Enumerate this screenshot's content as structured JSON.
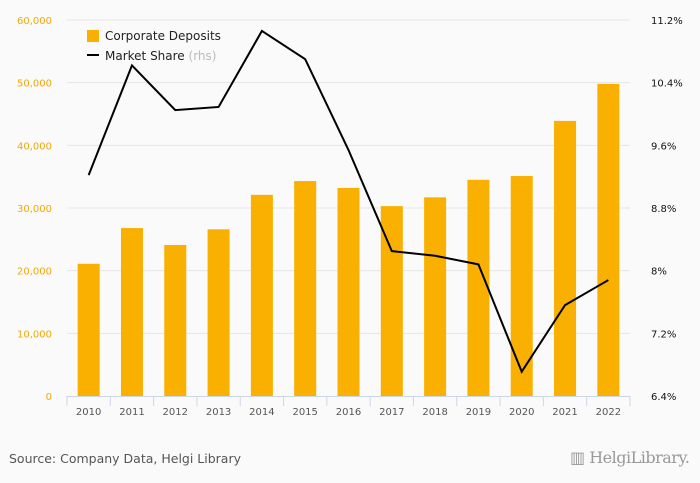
{
  "chart_data": {
    "type": "bar",
    "categories": [
      "2010",
      "2011",
      "2012",
      "2013",
      "2014",
      "2015",
      "2016",
      "2017",
      "2018",
      "2019",
      "2020",
      "2021",
      "2022"
    ],
    "series": [
      {
        "name": "Corporate Deposits",
        "axis": "left",
        "type": "bar",
        "color": "#f9b000",
        "values": [
          21100,
          26800,
          24100,
          26600,
          32100,
          34300,
          33200,
          30300,
          31700,
          34500,
          35100,
          43900,
          49800
        ]
      },
      {
        "name": "Market Share",
        "suffix": "(rhs)",
        "axis": "right",
        "type": "line",
        "color": "#000000",
        "values": [
          9.22,
          10.62,
          10.05,
          10.09,
          11.06,
          10.7,
          9.54,
          8.25,
          8.19,
          8.08,
          6.71,
          7.56,
          7.88
        ]
      }
    ],
    "left_axis": {
      "ylim": [
        0,
        60000
      ],
      "ticks": [
        "0",
        "10,000",
        "20,000",
        "30,000",
        "40,000",
        "50,000",
        "60,000"
      ]
    },
    "right_axis": {
      "ylim": [
        6.4,
        11.2
      ],
      "ticks": [
        "6.4%",
        "7.2%",
        "8%",
        "8.8%",
        "9.6%",
        "10.4%",
        "11.2%"
      ]
    },
    "grid": true,
    "legend_position": "top-left"
  },
  "source": "Source: Company Data, Helgi Library",
  "logo": "HelgiLibrary."
}
